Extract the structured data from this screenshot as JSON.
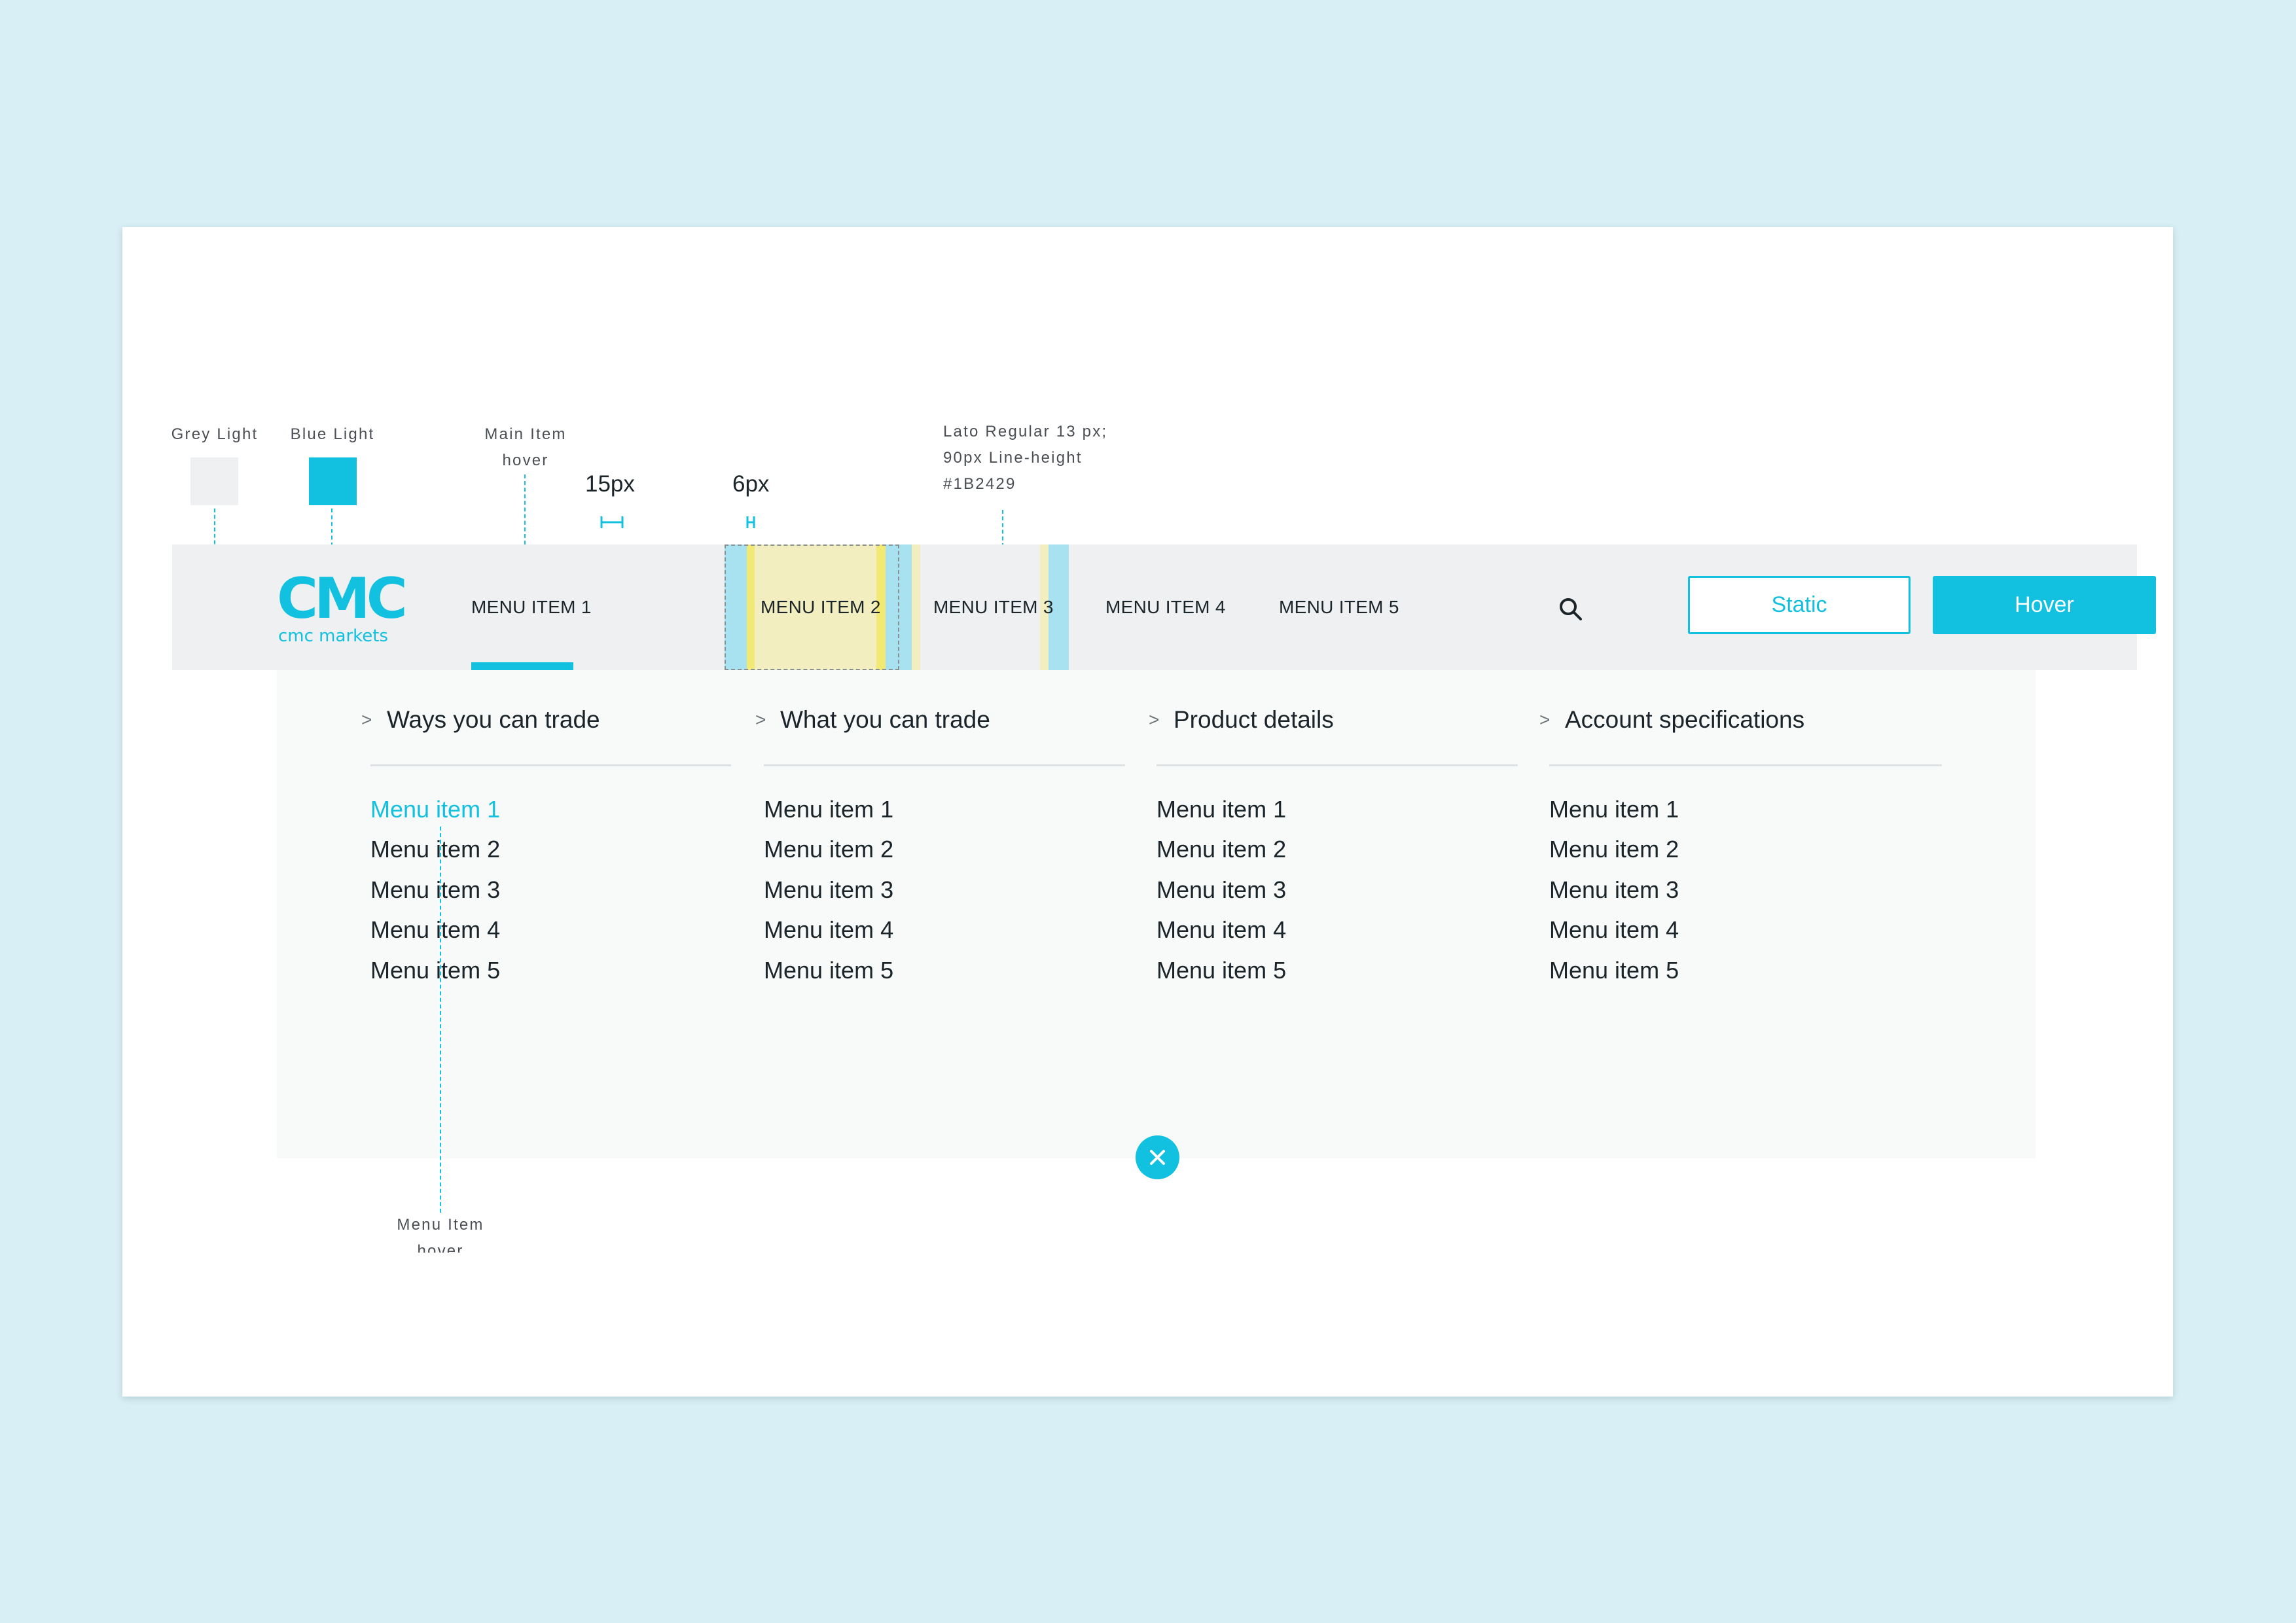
{
  "annotations": {
    "grey_light": "Grey Light",
    "blue_light": "Blue Light",
    "main_item_hover_l1": "Main Item",
    "main_item_hover_l2": "hover",
    "padding_15": "15px",
    "padding_6": "6px",
    "typography_l1": "Lato Regular 13 px;",
    "typography_l2": "90px Line-height",
    "typography_l3": "#1B2429",
    "menu_item_hover_l1": "Menu Item",
    "menu_item_hover_l2": "hover"
  },
  "colors": {
    "page_bg": "#D8EFF5",
    "grey_light": "#EEF0F1",
    "blue_light": "#12C0E0",
    "text": "#1B2429",
    "mega_bg": "#F8F9F9",
    "redline_yellow": "#F3EEBF",
    "redline_blue": "#A8E2F0"
  },
  "logo": {
    "mark": "CMC",
    "wordmark": "cmc markets"
  },
  "nav": {
    "items": [
      {
        "label": "MENU ITEM 1",
        "state": "active"
      },
      {
        "label": "MENU ITEM 2",
        "state": "spec-highlight"
      },
      {
        "label": "MENU ITEM 3",
        "state": "default"
      },
      {
        "label": "MENU ITEM 4",
        "state": "default"
      },
      {
        "label": "MENU ITEM 5",
        "state": "default"
      }
    ],
    "search_icon": "search-icon",
    "static_button": "Static",
    "hover_button": "Hover"
  },
  "mega_menu": {
    "columns": [
      {
        "heading": "Ways you can trade",
        "items": [
          "Menu item 1",
          "Menu item 2",
          "Menu item 3",
          "Menu item 4",
          "Menu item 5"
        ],
        "hovered_index": 0
      },
      {
        "heading": "What you can trade",
        "items": [
          "Menu item 1",
          "Menu item 2",
          "Menu item 3",
          "Menu item 4",
          "Menu item 5"
        ]
      },
      {
        "heading": "Product details",
        "items": [
          "Menu item 1",
          "Menu item 2",
          "Menu item 3",
          "Menu item 4",
          "Menu item 5"
        ]
      },
      {
        "heading": "Account specifications",
        "items": [
          "Menu item 1",
          "Menu item 2",
          "Menu item 3",
          "Menu item 4",
          "Menu item 5"
        ]
      }
    ],
    "chevron": ">",
    "close_icon": "close-icon"
  }
}
